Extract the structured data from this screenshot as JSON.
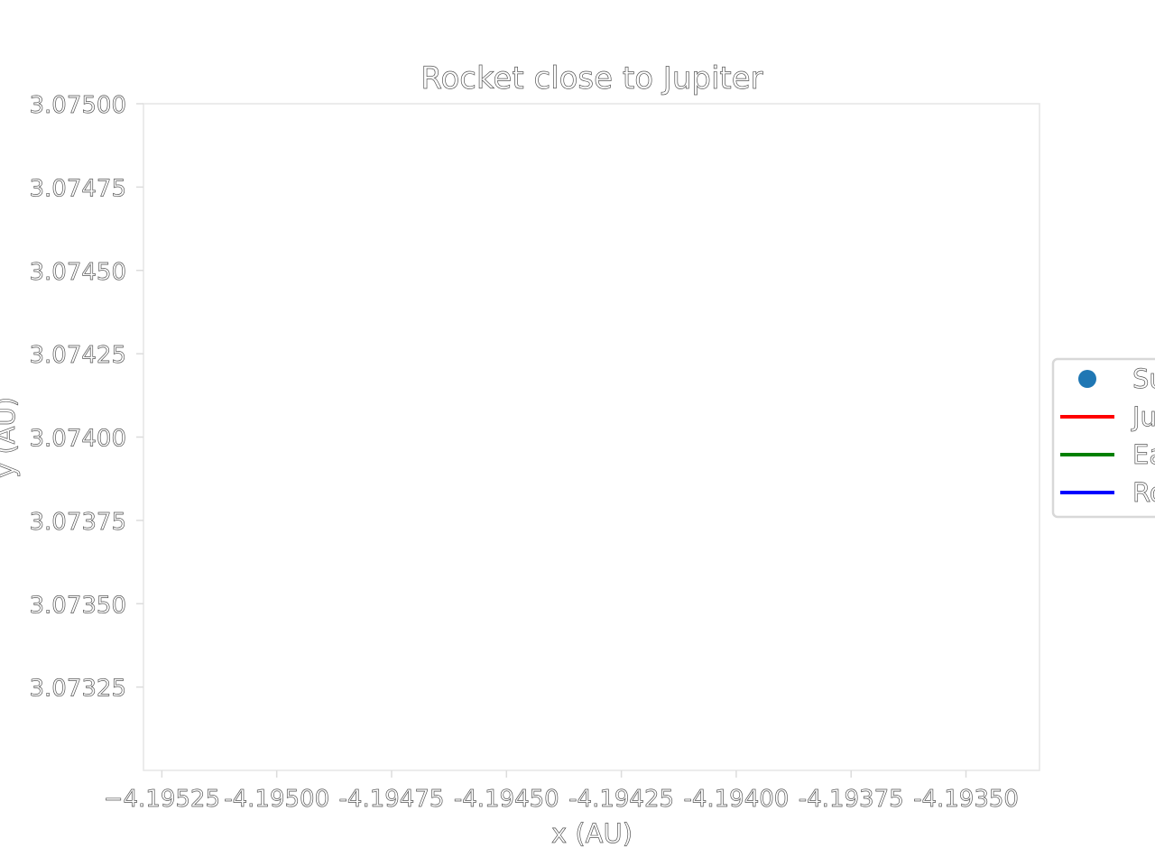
{
  "colors": {
    "background": "#ffffff",
    "axis_frame": "#e6e6e6",
    "text_outline": "#555555",
    "legend_border": "#d8d8d8"
  },
  "chart_data": {
    "type": "line",
    "title": "Rocket close to Jupiter",
    "xlabel": "x (AU)",
    "ylabel": "y (AU)",
    "xlim": [
      -4.19529,
      -4.19334
    ],
    "ylim": [
      3.073,
      3.075
    ],
    "xticks": [
      -4.19525,
      -4.195,
      -4.19475,
      -4.1945,
      -4.19425,
      -4.194,
      -4.19375,
      -4.1935
    ],
    "xtick_labels": [
      "−4.19525",
      "-4.19500",
      "-4.19475",
      "-4.19450",
      "-4.19425",
      "-4.19400",
      "-4.19375",
      "-4.19350"
    ],
    "yticks": [
      3.07325,
      3.0735,
      3.07375,
      3.074,
      3.07425,
      3.0745,
      3.07475,
      3.075
    ],
    "ytick_labels": [
      "3.07325",
      "3.07350",
      "3.07375",
      "3.07400",
      "3.07425",
      "3.07450",
      "3.07475",
      "3.07500"
    ],
    "grid": false,
    "legend_placement": "center-right (outside, clipped)",
    "series": [
      {
        "name": "Su",
        "marker": "circle",
        "color": "#1f77b4",
        "points": []
      },
      {
        "name": "Ju",
        "marker": "line",
        "color": "#ff0000",
        "points": []
      },
      {
        "name": "Ea",
        "marker": "line",
        "color": "#008000",
        "points": []
      },
      {
        "name": "Ro",
        "marker": "line",
        "color": "#0000ff",
        "points": []
      }
    ]
  }
}
